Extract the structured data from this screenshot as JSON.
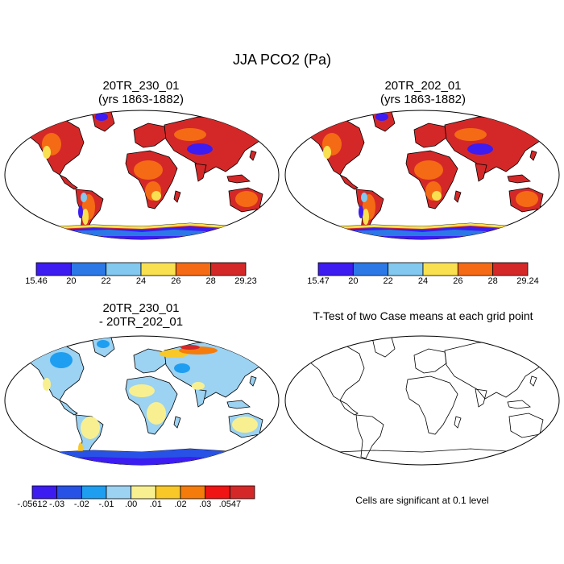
{
  "main_title": "JJA PCO2 (Pa)",
  "panels": {
    "top_left": {
      "title_line1": "20TR_230_01",
      "title_line2": "(yrs 1863-1882)",
      "colorbar": {
        "colors": [
          "#3c1cf0",
          "#2b78e6",
          "#82c8ef",
          "#f8e050",
          "#f56a14",
          "#d42828"
        ],
        "labels": [
          "15.46",
          "20",
          "22",
          "24",
          "26",
          "28",
          "29.23"
        ]
      }
    },
    "top_right": {
      "title_line1": "20TR_202_01",
      "title_line2": "(yrs 1863-1882)",
      "colorbar": {
        "colors": [
          "#3c1cf0",
          "#2b78e6",
          "#82c8ef",
          "#f8e050",
          "#f56a14",
          "#d42828"
        ],
        "labels": [
          "15.47",
          "20",
          "22",
          "24",
          "26",
          "28",
          "29.24"
        ]
      }
    },
    "bottom_left": {
      "title_line1": "20TR_230_01",
      "title_line2": "- 20TR_202_01",
      "colorbar": {
        "colors": [
          "#3c1cf0",
          "#2852e6",
          "#1e9ef0",
          "#9cd2f2",
          "#f8f090",
          "#f8c828",
          "#f57c0a",
          "#f01414",
          "#d42828"
        ],
        "labels": [
          "-.05612",
          "-.03",
          "-.02",
          "-.01",
          ".00",
          ".01",
          ".02",
          ".03",
          ".0547"
        ]
      }
    },
    "bottom_right": {
      "title": "T-Test of two Case means at each grid point",
      "note": "Cells are significant at 0.1 level"
    }
  }
}
